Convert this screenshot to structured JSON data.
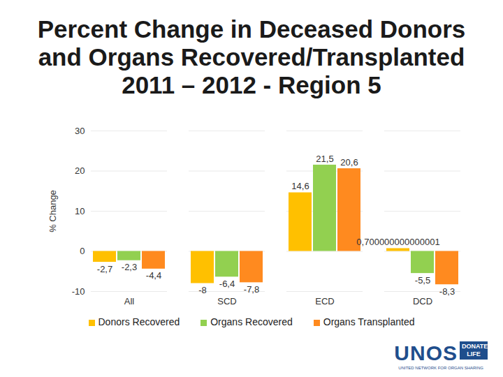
{
  "chart_data": {
    "type": "bar",
    "title": "Percent Change in Deceased Donors and Organs Recovered/Transplanted 2011 – 2012 - Region 5",
    "y_label": "% Change",
    "categories": [
      "All",
      "SCD",
      "ECD",
      "DCD"
    ],
    "series": [
      {
        "name": "Donors Recovered",
        "color": "#FFC000",
        "values": [
          -2.7,
          -8,
          14.6,
          0.700000000000001
        ],
        "value_labels": [
          "-2,7",
          "-8",
          "14,6",
          "0,700000000000001"
        ]
      },
      {
        "name": "Organs Recovered",
        "color": "#92D050",
        "values": [
          -2.3,
          -6.4,
          21.5,
          -5.5
        ],
        "value_labels": [
          "-2,3",
          "-6,4",
          "21,5",
          "-5,5"
        ]
      },
      {
        "name": "Organs Transplanted",
        "color": "#FF8A1F",
        "values": [
          -4.4,
          -7.8,
          20.6,
          -8.3
        ],
        "value_labels": [
          "-4,4",
          "-7,8",
          "20,6",
          "-8,3"
        ]
      }
    ],
    "ylim": [
      -10,
      30
    ],
    "yticks": [
      -10,
      0,
      10,
      20,
      30
    ],
    "grid": true,
    "data_labels": true,
    "annotations": [
      "UNOS",
      "DONATE LIFE",
      "UNITED NETWORK FOR ORGAN SHARING"
    ]
  }
}
